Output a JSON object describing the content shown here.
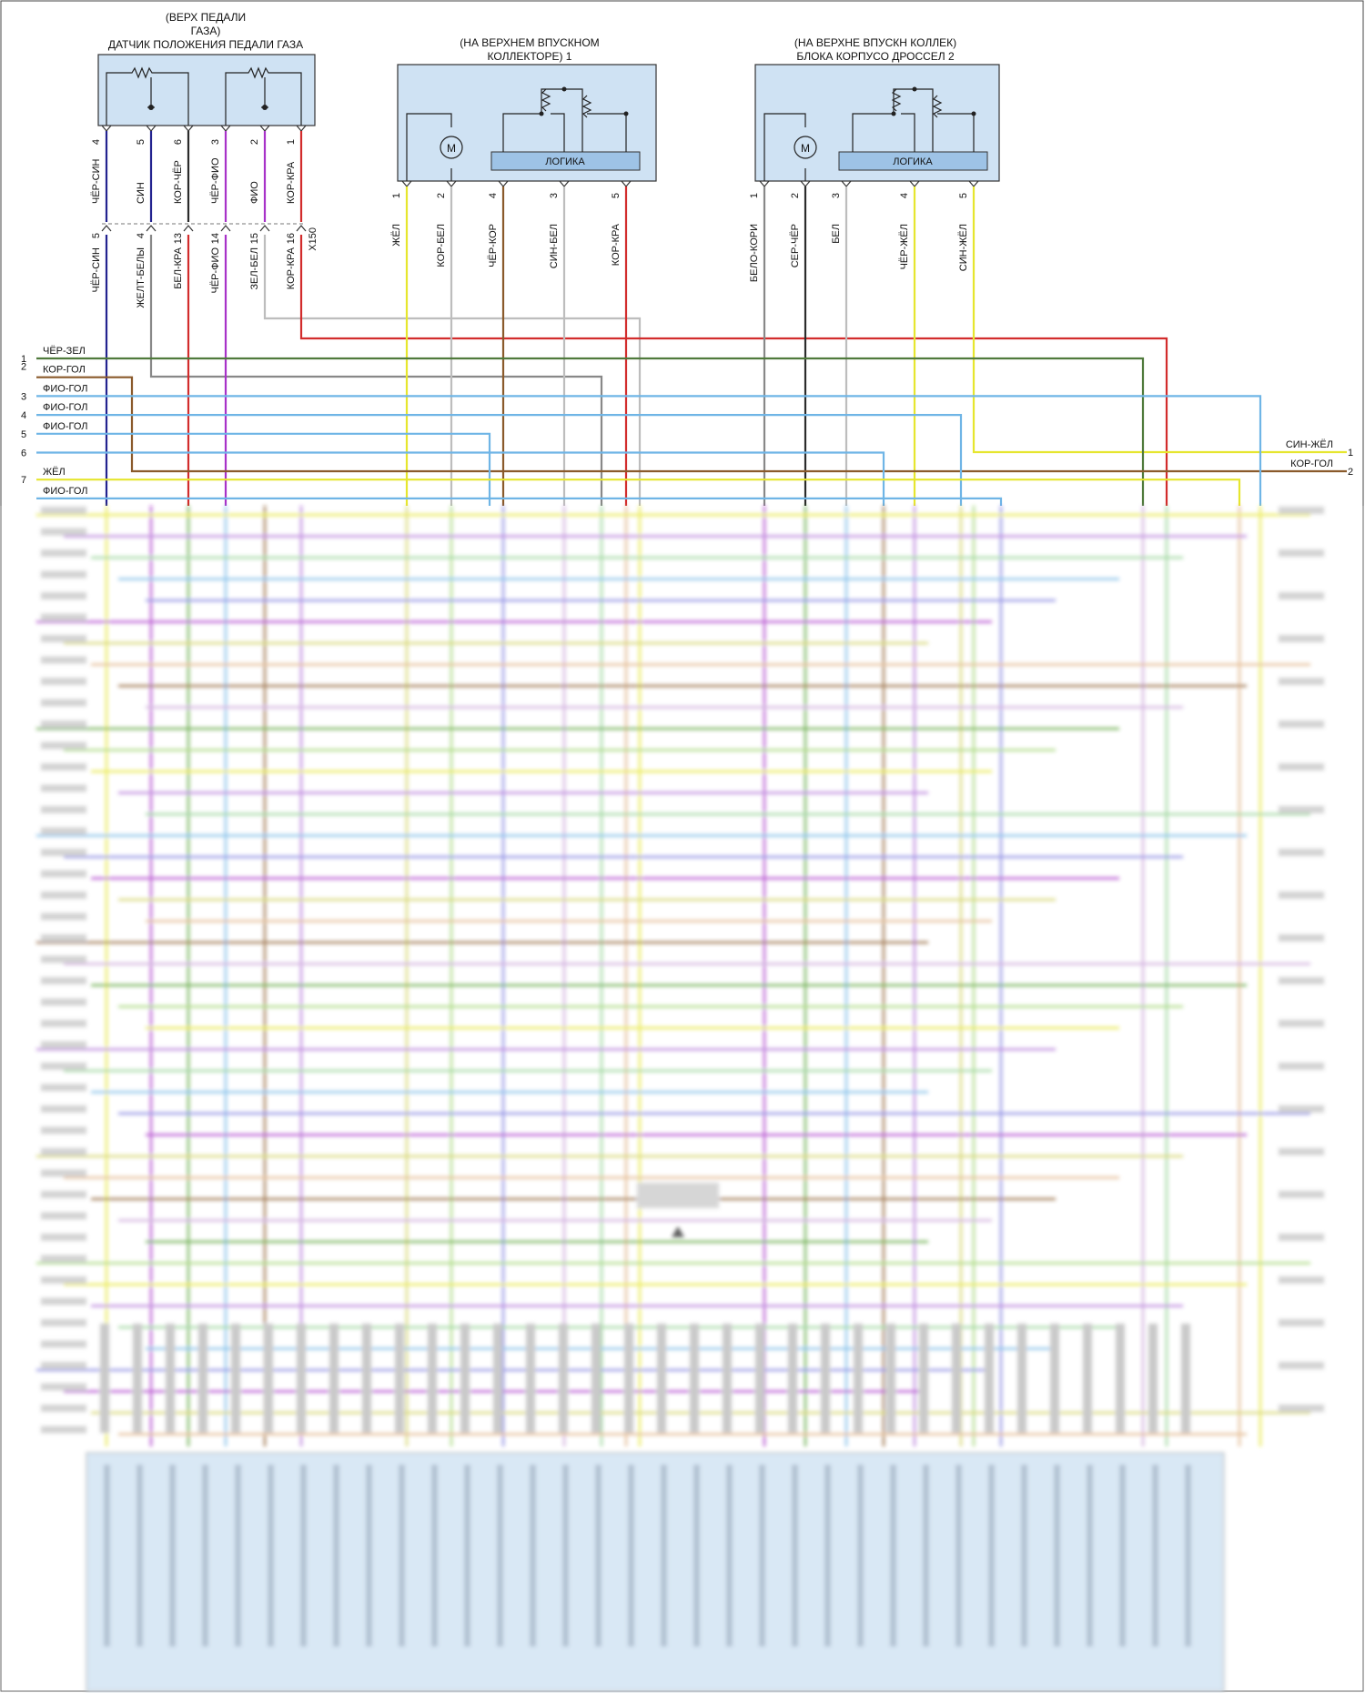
{
  "colors": {
    "ЧЁР": "#2b2b2b",
    "СИН": "#23238f",
    "КОР": "#8a5a2b",
    "ФИО": "#a832c8",
    "ЗЕЛ": "#55a032",
    "БЕЛ": "#bdbdbd",
    "ЖЁЛ": "#e6e62e",
    "ЖЕЛ": "#e6e62e",
    "СЕР": "#9a9a9a",
    "КРА": "#d22c2c",
    "ГОЛ": "#6fb5e6",
    "box_fill": "#cfe2f3"
  },
  "pedal_sensor": {
    "heading1": "(ВЕРХ ПЕДАЛИ",
    "heading2": "ГАЗА)",
    "heading3": "ДАТЧИК ПОЛОЖЕНИЯ ПЕДАЛИ ГАЗА",
    "pins": [
      "4",
      "5",
      "6",
      "3",
      "2",
      "1"
    ],
    "wires_top": [
      "ЧЁР-СИН",
      "СИН",
      "КОР-ЧЁР",
      "ЧЁР-ФИО",
      "ФИО",
      "КОР-КРА"
    ],
    "connector_pins": [
      "5",
      "4",
      "13",
      "14",
      "15",
      "16"
    ],
    "connector_name": "X150",
    "wires_bottom": [
      "ЧЁР-СИН",
      "ЖЕЛТ-БЕЛЫ",
      "БЕЛ-КРА",
      "ЧЁР-ФИО",
      "ЗЕЛ-БЕЛ",
      "КОР-КРА"
    ]
  },
  "throttle1": {
    "heading1": "(НА ВЕРХНЕМ ВПУСКНОМ",
    "heading2": "КОЛЛЕКТОРЕ) 1",
    "motor": "M",
    "logic": "ЛОГИКА",
    "pins": [
      "1",
      "2",
      "4",
      "3",
      "5"
    ],
    "wires": [
      "ЖЁЛ",
      "КОР-БЕЛ",
      "ЧЁР-КОР",
      "СИН-БЕЛ",
      "КОР-КРА"
    ]
  },
  "throttle2": {
    "heading1": "(НА ВЕРХНЕ ВПУСКН КОЛЛЕК)",
    "heading2": "БЛОКА КОРПУСО ДРОССЕЛ 2",
    "motor": "M",
    "logic": "ЛОГИКА",
    "pins": [
      "1",
      "2",
      "3",
      "4",
      "5"
    ],
    "wires": [
      "БЕЛО-КОРИ",
      "СЕР-ЧЁР",
      "БЕЛ",
      "ЧЁР-ЖЁЛ",
      "СИН-ЖЁЛ"
    ]
  },
  "left_connector": {
    "rows": [
      {
        "num": "1",
        "label": "ЧЁР-ЗЕЛ"
      },
      {
        "num": "2",
        "label": "КОР-ГОЛ"
      },
      {
        "num": "3",
        "label": "ФИО-ГОЛ"
      },
      {
        "num": "4",
        "label": "ФИО-ГОЛ"
      },
      {
        "num": "5",
        "label": "ФИО-ГОЛ"
      },
      {
        "num": "6",
        "label": ""
      },
      {
        "num": "7",
        "label": "ЖЁЛ"
      },
      {
        "num": "",
        "label": "ФИО-ГОЛ"
      }
    ]
  },
  "right_connector": {
    "rows": [
      {
        "num": "1",
        "label": "СИН-ЖЁЛ"
      },
      {
        "num": "2",
        "label": "КОР-ГОЛ"
      }
    ]
  }
}
